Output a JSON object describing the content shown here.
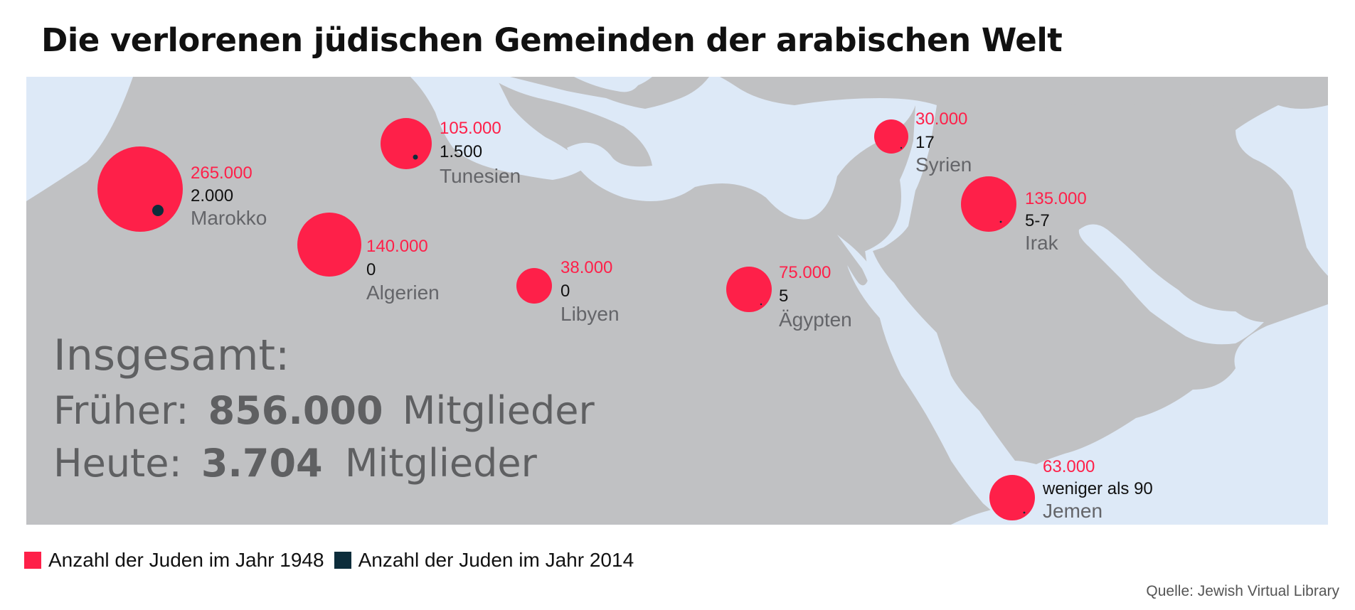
{
  "title": "Die verlorenen jüdischen Gemeinden der arabischen Welt",
  "colors": {
    "sea": "#dde9f7",
    "land": "#c0c1c3",
    "pop1948": "#fe2049",
    "pop2014": "#0d2d3b",
    "country_label": "#646569",
    "summary_text": "#5f6062"
  },
  "countries": [
    {
      "name": "Marokko",
      "pop_1948": "265.000",
      "pop_2014": "2.000",
      "v1948": 265000,
      "v2014": 2000
    },
    {
      "name": "Algerien",
      "pop_1948": "140.000",
      "pop_2014": "0",
      "v1948": 140000,
      "v2014": 0
    },
    {
      "name": "Tunesien",
      "pop_1948": "105.000",
      "pop_2014": "1.500",
      "v1948": 105000,
      "v2014": 1500
    },
    {
      "name": "Libyen",
      "pop_1948": "38.000",
      "pop_2014": "0",
      "v1948": 38000,
      "v2014": 0
    },
    {
      "name": "Ägypten",
      "pop_1948": "75.000",
      "pop_2014": "5",
      "v1948": 75000,
      "v2014": 5
    },
    {
      "name": "Syrien",
      "pop_1948": "30.000",
      "pop_2014": "17",
      "v1948": 30000,
      "v2014": 17
    },
    {
      "name": "Irak",
      "pop_1948": "135.000",
      "pop_2014": "5-7",
      "v1948": 135000,
      "v2014": 6
    },
    {
      "name": "Jemen",
      "pop_1948": "63.000",
      "pop_2014": "weniger als 90",
      "v1948": 63000,
      "v2014": 90
    }
  ],
  "summary": {
    "heading": "Insgesamt:",
    "before_label": "Früher:",
    "before_value": "856.000",
    "before_unit": "Mitglieder",
    "today_label": "Heute:",
    "today_value": "3.704",
    "today_unit": "Mitglieder"
  },
  "legend": {
    "item_1948": "Anzahl der Juden im Jahr 1948",
    "item_2014": "Anzahl der Juden im Jahr 2014"
  },
  "source": "Quelle: Jewish Virtual Library"
}
